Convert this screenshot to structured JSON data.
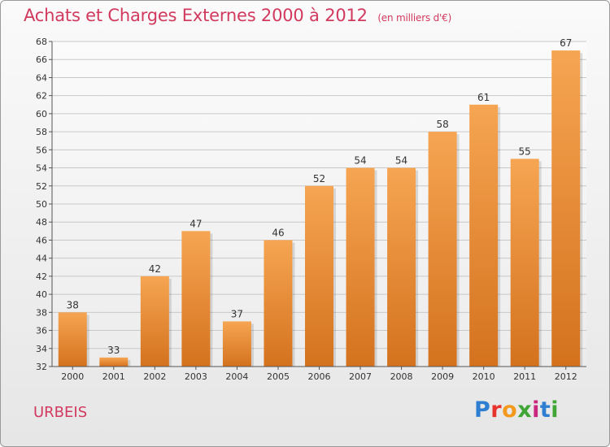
{
  "header": {
    "title": "Achats et Charges Externes 2000 à 2012",
    "subtitle": "(en milliers d'€)"
  },
  "footer": {
    "commune": "URBEIS",
    "brand": "Proxiti",
    "brand_colors": [
      "#2e7fd1",
      "#e8332c",
      "#f39a1e",
      "#3fa535",
      "#c9277d",
      "#2e7fd1",
      "#3fa535"
    ]
  },
  "chart_data": {
    "type": "bar",
    "title": "Achats et Charges Externes 2000 à 2012",
    "subtitle": "(en milliers d'€)",
    "categories": [
      "2000",
      "2001",
      "2002",
      "2003",
      "2004",
      "2005",
      "2006",
      "2007",
      "2008",
      "2009",
      "2010",
      "2011",
      "2012"
    ],
    "values": [
      38,
      33,
      42,
      47,
      37,
      46,
      52,
      54,
      54,
      58,
      61,
      55,
      67
    ],
    "ylim": [
      32,
      68
    ],
    "yticks": [
      32,
      34,
      36,
      38,
      40,
      42,
      44,
      46,
      48,
      50,
      52,
      54,
      56,
      58,
      60,
      62,
      64,
      66,
      68
    ],
    "grid": true,
    "bar_color_top": "#f6a552",
    "bar_color_bottom": "#d4721e",
    "grid_color": "#c8c8c8"
  }
}
